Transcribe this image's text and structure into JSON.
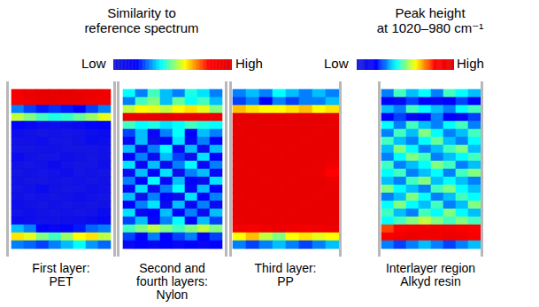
{
  "chart_data": [
    {
      "type": "heatmap_group",
      "colorbar": {
        "title": "Similarity to\nreference spectrum",
        "range": [
          0,
          1
        ],
        "labels": [
          "Low",
          "High"
        ]
      },
      "panels": [
        {
          "type": "heatmap",
          "title": "First layer:\nPET",
          "cells": [
            [
              0.88,
              0.92,
              0.95,
              0.96,
              0.95,
              0.94,
              0.92,
              0.9
            ],
            [
              0.86,
              0.9,
              0.93,
              0.94,
              0.93,
              0.92,
              0.9,
              0.88
            ],
            [
              0.3,
              0.25,
              0.22,
              0.24,
              0.22,
              0.2,
              0.25,
              0.3
            ],
            [
              0.55,
              0.5,
              0.45,
              0.42,
              0.44,
              0.48,
              0.52,
              0.58
            ],
            [
              0.18,
              0.15,
              0.12,
              0.1,
              0.12,
              0.14,
              0.18,
              0.2
            ],
            [
              0.1,
              0.08,
              0.06,
              0.07,
              0.06,
              0.08,
              0.1,
              0.12
            ],
            [
              0.08,
              0.07,
              0.1,
              0.06,
              0.05,
              0.07,
              0.12,
              0.1
            ],
            [
              0.06,
              0.05,
              0.07,
              0.08,
              0.06,
              0.05,
              0.06,
              0.08
            ],
            [
              0.12,
              0.08,
              0.05,
              0.06,
              0.09,
              0.07,
              0.05,
              0.07
            ],
            [
              0.07,
              0.06,
              0.08,
              0.12,
              0.07,
              0.05,
              0.06,
              0.09
            ],
            [
              0.05,
              0.07,
              0.06,
              0.08,
              0.1,
              0.06,
              0.07,
              0.06
            ],
            [
              0.08,
              0.05,
              0.05,
              0.07,
              0.06,
              0.08,
              0.05,
              0.07
            ],
            [
              0.06,
              0.08,
              0.12,
              0.07,
              0.05,
              0.06,
              0.09,
              0.08
            ],
            [
              0.07,
              0.06,
              0.08,
              0.05,
              0.07,
              0.1,
              0.08,
              0.06
            ],
            [
              0.1,
              0.07,
              0.06,
              0.08,
              0.06,
              0.07,
              0.05,
              0.08
            ],
            [
              0.08,
              0.1,
              0.07,
              0.06,
              0.08,
              0.06,
              0.07,
              0.12
            ],
            [
              0.12,
              0.1,
              0.08,
              0.07,
              0.09,
              0.1,
              0.12,
              0.15
            ],
            [
              0.35,
              0.3,
              0.2,
              0.15,
              0.18,
              0.22,
              0.28,
              0.3
            ],
            [
              0.62,
              0.58,
              0.5,
              0.45,
              0.52,
              0.6,
              0.62,
              0.55
            ],
            [
              0.3,
              0.28,
              0.25,
              0.3,
              0.35,
              0.4,
              0.32,
              0.28
            ]
          ]
        },
        {
          "type": "heatmap",
          "title": "Second and\nfourth layers:\nNylon",
          "cells": [
            [
              0.4,
              0.3,
              0.45,
              0.35,
              0.3,
              0.42,
              0.38,
              0.3
            ],
            [
              0.3,
              0.45,
              0.5,
              0.35,
              0.48,
              0.4,
              0.45,
              0.35
            ],
            [
              0.55,
              0.6,
              0.58,
              0.55,
              0.6,
              0.62,
              0.58,
              0.5
            ],
            [
              0.92,
              0.94,
              0.95,
              0.95,
              0.94,
              0.93,
              0.92,
              0.9
            ],
            [
              0.45,
              0.4,
              0.42,
              0.38,
              0.4,
              0.45,
              0.42,
              0.4
            ],
            [
              0.25,
              0.35,
              0.15,
              0.3,
              0.4,
              0.2,
              0.35,
              0.3
            ],
            [
              0.15,
              0.35,
              0.1,
              0.2,
              0.38,
              0.15,
              0.3,
              0.2
            ],
            [
              0.35,
              0.12,
              0.3,
              0.4,
              0.15,
              0.35,
              0.12,
              0.35
            ],
            [
              0.2,
              0.3,
              0.12,
              0.35,
              0.25,
              0.1,
              0.38,
              0.2
            ],
            [
              0.38,
              0.15,
              0.35,
              0.12,
              0.3,
              0.4,
              0.15,
              0.3
            ],
            [
              0.12,
              0.35,
              0.2,
              0.38,
              0.1,
              0.3,
              0.35,
              0.15
            ],
            [
              0.3,
              0.2,
              0.4,
              0.15,
              0.35,
              0.2,
              0.12,
              0.38
            ],
            [
              0.15,
              0.38,
              0.12,
              0.3,
              0.4,
              0.15,
              0.35,
              0.2
            ],
            [
              0.35,
              0.1,
              0.3,
              0.2,
              0.12,
              0.38,
              0.2,
              0.3
            ],
            [
              0.2,
              0.3,
              0.38,
              0.12,
              0.35,
              0.15,
              0.3,
              0.12
            ],
            [
              0.38,
              0.15,
              0.2,
              0.35,
              0.2,
              0.3,
              0.12,
              0.35
            ],
            [
              0.25,
              0.35,
              0.15,
              0.3,
              0.4,
              0.2,
              0.35,
              0.25
            ],
            [
              0.45,
              0.5,
              0.55,
              0.5,
              0.45,
              0.5,
              0.55,
              0.5
            ],
            [
              0.25,
              0.2,
              0.3,
              0.2,
              0.25,
              0.3,
              0.2,
              0.25
            ],
            [
              0.15,
              0.2,
              0.15,
              0.2,
              0.15,
              0.2,
              0.15,
              0.2
            ]
          ]
        },
        {
          "type": "heatmap",
          "title": "Third layer:\nPP",
          "cells": [
            [
              0.3,
              0.35,
              0.3,
              0.4,
              0.35,
              0.3,
              0.35,
              0.3
            ],
            [
              0.25,
              0.3,
              0.2,
              0.3,
              0.25,
              0.3,
              0.3,
              0.35
            ],
            [
              0.65,
              0.62,
              0.6,
              0.6,
              0.62,
              0.65,
              0.6,
              0.62
            ],
            [
              0.94,
              0.95,
              0.96,
              0.95,
              0.94,
              0.95,
              0.96,
              0.95
            ],
            [
              0.95,
              0.96,
              0.95,
              0.94,
              0.95,
              0.96,
              0.95,
              0.94
            ],
            [
              0.94,
              0.95,
              0.96,
              0.95,
              0.96,
              0.95,
              0.94,
              0.95
            ],
            [
              0.95,
              0.94,
              0.95,
              0.96,
              0.95,
              0.94,
              0.95,
              0.96
            ],
            [
              0.96,
              0.95,
              0.94,
              0.95,
              0.94,
              0.95,
              0.96,
              0.95
            ],
            [
              0.95,
              0.96,
              0.95,
              0.94,
              0.95,
              0.96,
              0.95,
              0.94
            ],
            [
              0.94,
              0.95,
              0.96,
              0.95,
              0.96,
              0.95,
              0.94,
              0.9
            ],
            [
              0.95,
              0.94,
              0.95,
              0.96,
              0.95,
              0.94,
              0.92,
              0.8
            ],
            [
              0.96,
              0.95,
              0.94,
              0.95,
              0.94,
              0.95,
              0.96,
              0.92
            ],
            [
              0.95,
              0.96,
              0.95,
              0.94,
              0.95,
              0.96,
              0.95,
              0.94
            ],
            [
              0.94,
              0.95,
              0.96,
              0.95,
              0.96,
              0.95,
              0.94,
              0.95
            ],
            [
              0.95,
              0.94,
              0.95,
              0.96,
              0.95,
              0.94,
              0.95,
              0.96
            ],
            [
              0.96,
              0.95,
              0.94,
              0.95,
              0.94,
              0.95,
              0.96,
              0.95
            ],
            [
              0.94,
              0.95,
              0.95,
              0.94,
              0.95,
              0.96,
              0.95,
              0.94
            ],
            [
              0.88,
              0.85,
              0.9,
              0.92,
              0.9,
              0.88,
              0.9,
              0.92
            ],
            [
              0.6,
              0.65,
              0.55,
              0.5,
              0.6,
              0.62,
              0.58,
              0.6
            ],
            [
              0.3,
              0.25,
              0.3,
              0.35,
              0.3,
              0.25,
              0.3,
              0.35
            ]
          ]
        }
      ]
    },
    {
      "type": "heatmap_group",
      "colorbar": {
        "title": "Peak height\nat 1020–980 cm⁻¹",
        "range": [
          0,
          1
        ],
        "labels": [
          "Low",
          "High"
        ]
      },
      "panels": [
        {
          "type": "heatmap",
          "title": "Interlayer region\nAlkyd resin",
          "cells": [
            [
              0.3,
              0.45,
              0.35,
              0.4,
              0.3,
              0.45,
              0.4,
              0.35
            ],
            [
              0.2,
              0.15,
              0.25,
              0.2,
              0.15,
              0.2,
              0.25,
              0.2
            ],
            [
              0.35,
              0.3,
              0.45,
              0.4,
              0.35,
              0.3,
              0.4,
              0.45
            ],
            [
              0.2,
              0.25,
              0.15,
              0.2,
              0.3,
              0.2,
              0.15,
              0.25
            ],
            [
              0.4,
              0.3,
              0.45,
              0.35,
              0.3,
              0.4,
              0.45,
              0.3
            ],
            [
              0.3,
              0.45,
              0.35,
              0.5,
              0.4,
              0.3,
              0.35,
              0.45
            ],
            [
              0.45,
              0.35,
              0.3,
              0.4,
              0.48,
              0.35,
              0.3,
              0.4
            ],
            [
              0.35,
              0.5,
              0.4,
              0.3,
              0.35,
              0.45,
              0.5,
              0.35
            ],
            [
              0.3,
              0.4,
              0.5,
              0.45,
              0.3,
              0.35,
              0.4,
              0.45
            ],
            [
              0.45,
              0.3,
              0.35,
              0.4,
              0.5,
              0.45,
              0.3,
              0.35
            ],
            [
              0.4,
              0.45,
              0.3,
              0.35,
              0.4,
              0.3,
              0.45,
              0.5
            ],
            [
              0.35,
              0.3,
              0.45,
              0.5,
              0.35,
              0.4,
              0.35,
              0.3
            ],
            [
              0.5,
              0.4,
              0.35,
              0.3,
              0.45,
              0.5,
              0.4,
              0.35
            ],
            [
              0.3,
              0.35,
              0.5,
              0.4,
              0.3,
              0.35,
              0.45,
              0.4
            ],
            [
              0.4,
              0.5,
              0.4,
              0.35,
              0.45,
              0.3,
              0.35,
              0.5
            ],
            [
              0.45,
              0.35,
              0.3,
              0.45,
              0.4,
              0.5,
              0.4,
              0.35
            ],
            [
              0.4,
              0.45,
              0.5,
              0.55,
              0.5,
              0.45,
              0.5,
              0.45
            ],
            [
              0.75,
              0.8,
              0.85,
              0.88,
              0.9,
              0.88,
              0.85,
              0.8
            ],
            [
              0.85,
              0.9,
              0.92,
              0.9,
              0.88,
              0.92,
              0.9,
              0.85
            ],
            [
              0.3,
              0.25,
              0.3,
              0.35,
              0.3,
              0.25,
              0.3,
              0.35
            ]
          ]
        }
      ]
    }
  ]
}
